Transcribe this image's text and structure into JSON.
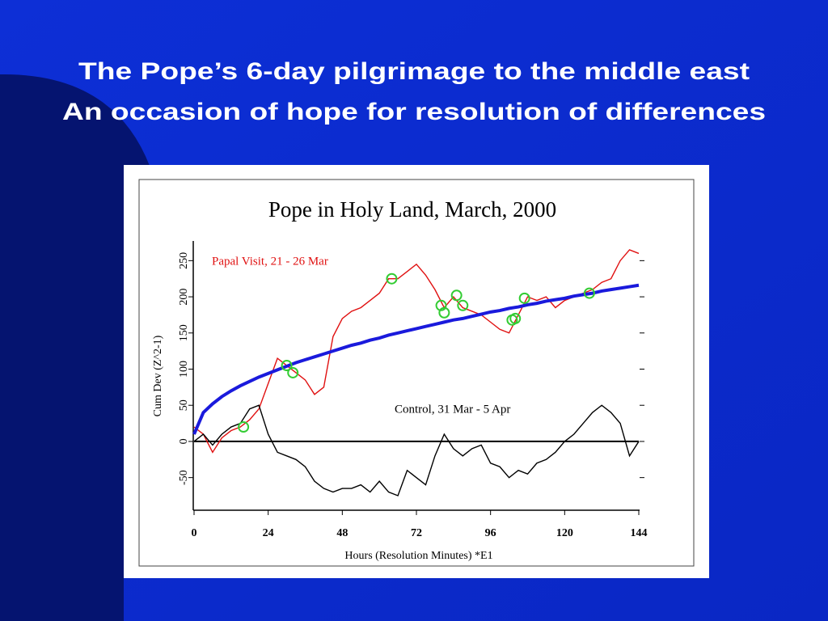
{
  "slide": {
    "title": [
      "The Pope’s 6-day pilgrimage to the middle east",
      "An occasion of hope for resolution of differences"
    ]
  },
  "chart_data": {
    "type": "line",
    "title": "Pope in Holy Land, March, 2000",
    "x_label": "Hours (Resolution Minutes)   *E1",
    "y_label": "Cum Dev (Z^2-1)",
    "xlim": [
      0,
      144
    ],
    "xticks": [
      0,
      24,
      48,
      72,
      96,
      120,
      144
    ],
    "ylim": [
      -94,
      275
    ],
    "yticks": [
      -50,
      0,
      50,
      100,
      150,
      200,
      250
    ],
    "reference_line": 0,
    "x": [
      0,
      3,
      6,
      9,
      12,
      15,
      18,
      21,
      24,
      27,
      30,
      33,
      36,
      39,
      42,
      45,
      48,
      51,
      54,
      57,
      60,
      63,
      66,
      69,
      72,
      75,
      78,
      81,
      84,
      87,
      90,
      93,
      96,
      99,
      102,
      105,
      108,
      111,
      114,
      117,
      120,
      123,
      126,
      129,
      132,
      135,
      138,
      141,
      144
    ],
    "series": [
      {
        "name": "Papal Visit, 21 - 26 Mar",
        "color": "#e01010",
        "values": [
          20,
          10,
          -15,
          5,
          15,
          20,
          30,
          45,
          80,
          115,
          105,
          95,
          85,
          65,
          75,
          145,
          170,
          180,
          185,
          195,
          205,
          225,
          225,
          235,
          245,
          230,
          210,
          185,
          200,
          185,
          180,
          175,
          165,
          155,
          150,
          175,
          200,
          195,
          200,
          185,
          195,
          200,
          205,
          210,
          220,
          225,
          250,
          265,
          260
        ]
      },
      {
        "name": "Control, 31 Mar - 5 Apr",
        "color": "#000000",
        "values": [
          0,
          10,
          -5,
          10,
          20,
          25,
          45,
          50,
          10,
          -15,
          -20,
          -25,
          -35,
          -55,
          -65,
          -70,
          -65,
          -65,
          -60,
          -70,
          -55,
          -70,
          -75,
          -40,
          -50,
          -60,
          -20,
          10,
          -10,
          -20,
          -10,
          -5,
          -30,
          -35,
          -50,
          -40,
          -45,
          -30,
          -25,
          -15,
          0,
          10,
          25,
          40,
          50,
          40,
          25,
          -20,
          0
        ]
      },
      {
        "color": "#1a1adc",
        "values": [
          10,
          40,
          52,
          62,
          70,
          77,
          83,
          89,
          94,
          99,
          104,
          109,
          113,
          117,
          121,
          125,
          129,
          133,
          136,
          140,
          143,
          147,
          150,
          153,
          156,
          159,
          162,
          165,
          168,
          170,
          173,
          176,
          179,
          181,
          184,
          186,
          189,
          191,
          194,
          196,
          198,
          201,
          203,
          205,
          208,
          210,
          212,
          214,
          216
        ]
      }
    ],
    "markers": {
      "color": "#33cc33",
      "x": [
        16,
        30,
        32,
        64,
        80,
        81,
        85,
        87,
        103,
        104,
        107,
        128
      ],
      "values": [
        20,
        105,
        95,
        225,
        188,
        178,
        202,
        188,
        168,
        170,
        198,
        205
      ]
    }
  }
}
